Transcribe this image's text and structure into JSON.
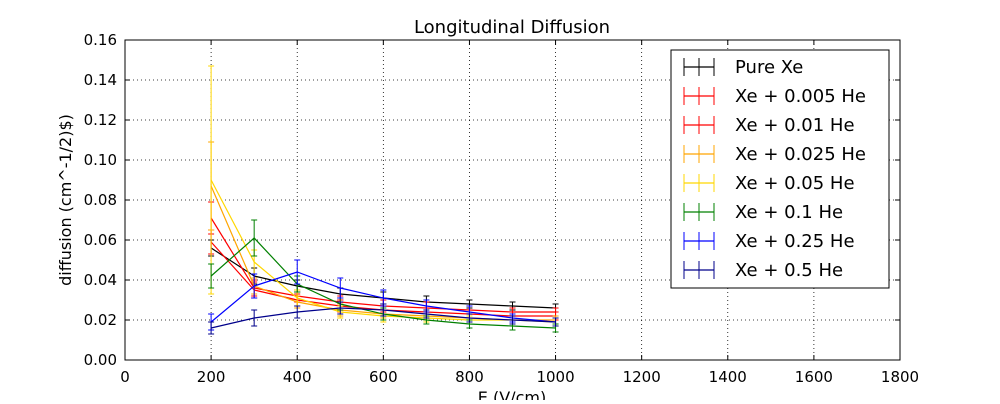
{
  "chart_data": {
    "type": "line",
    "title": "Longitudinal Diffusion",
    "xlabel": "E (V/cm)",
    "ylabel": "diffusion (cm^-1/2)$)",
    "xlim": [
      0,
      1800
    ],
    "ylim": [
      0,
      0.16
    ],
    "xticks": [
      0,
      200,
      400,
      600,
      800,
      1000,
      1200,
      1400,
      1600,
      1800
    ],
    "yticks": [
      0.0,
      0.02,
      0.04,
      0.06,
      0.08,
      0.1,
      0.12,
      0.14,
      0.16
    ],
    "grid": true,
    "legend_position": "top-right",
    "x": [
      200,
      300,
      400,
      500,
      600,
      700,
      800,
      900,
      1000
    ],
    "series": [
      {
        "name": "Pure Xe",
        "color": "#000000",
        "values": [
          0.056,
          0.042,
          0.037,
          0.033,
          0.031,
          0.029,
          0.028,
          0.027,
          0.026
        ],
        "errors": [
          0.004,
          0.004,
          0.003,
          0.003,
          0.003,
          0.003,
          0.002,
          0.002,
          0.002
        ]
      },
      {
        "name": "Xe + 0.005 He",
        "color": "#ff0000",
        "values": [
          0.071,
          0.036,
          0.032,
          0.029,
          0.027,
          0.026,
          0.025,
          0.024,
          0.024
        ],
        "errors": [
          0.008,
          0.004,
          0.003,
          0.003,
          0.003,
          0.003,
          0.002,
          0.002,
          0.002
        ]
      },
      {
        "name": "Xe + 0.01 He",
        "color": "#ff0000",
        "values": [
          0.059,
          0.035,
          0.03,
          0.027,
          0.025,
          0.024,
          0.023,
          0.022,
          0.022
        ],
        "errors": [
          0.006,
          0.004,
          0.003,
          0.003,
          0.003,
          0.002,
          0.002,
          0.002,
          0.002
        ]
      },
      {
        "name": "Xe + 0.025 He",
        "color": "#ffa500",
        "values": [
          0.087,
          0.037,
          0.029,
          0.025,
          0.023,
          0.022,
          0.021,
          0.02,
          0.02
        ],
        "errors": [
          0.022,
          0.004,
          0.003,
          0.003,
          0.002,
          0.002,
          0.002,
          0.002,
          0.002
        ]
      },
      {
        "name": "Xe + 0.05 He",
        "color": "#ffd700",
        "values": [
          0.09,
          0.049,
          0.031,
          0.024,
          0.022,
          0.021,
          0.02,
          0.02,
          0.019
        ],
        "errors": [
          0.057,
          0.006,
          0.004,
          0.003,
          0.003,
          0.002,
          0.002,
          0.002,
          0.002
        ]
      },
      {
        "name": "Xe + 0.1 He",
        "color": "#008000",
        "values": [
          0.042,
          0.061,
          0.038,
          0.028,
          0.023,
          0.02,
          0.018,
          0.017,
          0.016
        ],
        "errors": [
          0.006,
          0.009,
          0.004,
          0.003,
          0.003,
          0.002,
          0.002,
          0.002,
          0.002
        ]
      },
      {
        "name": "Xe + 0.25 He",
        "color": "#0000ff",
        "values": [
          0.019,
          0.037,
          0.044,
          0.036,
          0.031,
          0.027,
          0.024,
          0.021,
          0.019
        ],
        "errors": [
          0.004,
          0.006,
          0.006,
          0.005,
          0.004,
          0.003,
          0.003,
          0.002,
          0.002
        ]
      },
      {
        "name": "Xe + 0.5 He",
        "color": "#00008b",
        "values": [
          0.016,
          0.021,
          0.024,
          0.026,
          0.025,
          0.023,
          0.021,
          0.02,
          0.019
        ],
        "errors": [
          0.003,
          0.004,
          0.003,
          0.003,
          0.003,
          0.002,
          0.002,
          0.002,
          0.002
        ]
      }
    ]
  }
}
